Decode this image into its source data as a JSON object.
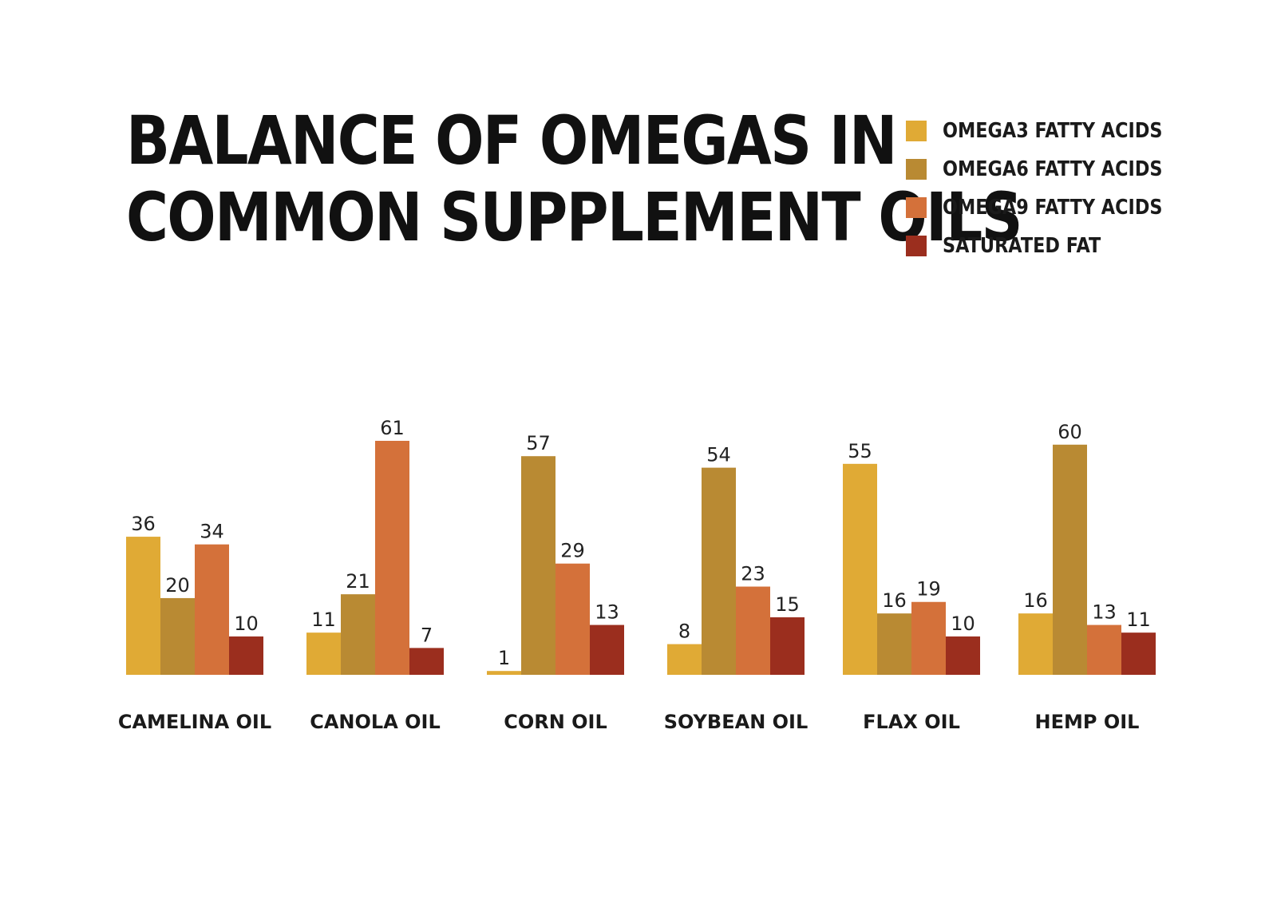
{
  "chart_data": {
    "type": "bar",
    "title_lines": [
      "BALANCE OF OMEGAS IN",
      "COMMON SUPPLEMENT OILS"
    ],
    "categories": [
      "CAMELINA OIL",
      "CANOLA OIL",
      "CORN OIL",
      "SOYBEAN OIL",
      "FLAX OIL",
      "HEMP OIL"
    ],
    "series": [
      {
        "name": "OMEGA3 FATTY ACIDS",
        "color": "#E0AA35",
        "values": [
          36,
          11,
          1,
          8,
          55,
          16
        ]
      },
      {
        "name": "OMEGA6 FATTY ACIDS",
        "color": "#B98A33",
        "values": [
          20,
          21,
          57,
          54,
          16,
          60
        ]
      },
      {
        "name": "OMEGA9 FATTY ACIDS",
        "color": "#D4713A",
        "values": [
          34,
          61,
          29,
          23,
          19,
          13
        ]
      },
      {
        "name": "SATURATED FAT",
        "color": "#9B2E1E",
        "values": [
          10,
          7,
          13,
          15,
          10,
          11
        ]
      }
    ],
    "ylim": [
      0,
      61
    ],
    "grid": false,
    "legend_position": "top-right"
  }
}
